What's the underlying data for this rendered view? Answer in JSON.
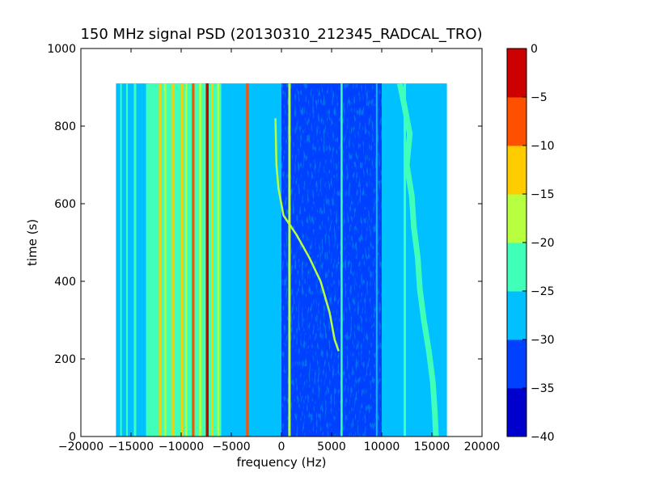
{
  "chart_data": {
    "type": "heatmap",
    "title": "150 MHz signal PSD (20130310_212345_RADCAL_TRO)",
    "xlabel": "frequency (Hz)",
    "ylabel": "time (s)",
    "xlim": [
      -20000,
      20000
    ],
    "ylim": [
      0,
      1000
    ],
    "x_ticks": [
      -20000,
      -15000,
      -10000,
      -5000,
      0,
      5000,
      10000,
      15000,
      20000
    ],
    "x_tick_labels": [
      "−20000",
      "−15000",
      "−10000",
      "−5000",
      "0",
      "5000",
      "10000",
      "15000",
      "20000"
    ],
    "y_ticks": [
      0,
      200,
      400,
      600,
      800,
      1000
    ],
    "y_tick_labels": [
      "0",
      "200",
      "400",
      "600",
      "800",
      "1000"
    ],
    "data_extent": {
      "x": [
        -16500,
        16500
      ],
      "y": [
        0,
        910
      ]
    },
    "colorbar": {
      "range": [
        -40,
        0
      ],
      "levels": [
        -40,
        -35,
        -30,
        -25,
        -20,
        -15,
        -10,
        -5,
        0
      ],
      "tick_labels": [
        "−40",
        "−35",
        "−30",
        "−25",
        "−20",
        "−15",
        "−10",
        "−5",
        "0"
      ],
      "colors": [
        "#0000cd",
        "#0040ff",
        "#00c0ff",
        "#40ffb8",
        "#b8ff40",
        "#ffcc00",
        "#ff5000",
        "#cd0000"
      ]
    },
    "background_level": -27,
    "bands": [
      {
        "x0": -16500,
        "x1": 16500,
        "level": -27
      },
      {
        "x0": 0,
        "x1": 10000,
        "level": -32
      },
      {
        "x0": -9000,
        "x1": -6000,
        "level": -22
      },
      {
        "x0": -13500,
        "x1": -8000,
        "level": -24
      }
    ],
    "tones": [
      {
        "x": -16000,
        "level": -22,
        "width": 160
      },
      {
        "x": -15400,
        "level": -24,
        "width": 160
      },
      {
        "x": -14600,
        "level": -22,
        "width": 240
      },
      {
        "x": -12100,
        "level": -12,
        "width": 240
      },
      {
        "x": -11600,
        "level": -20,
        "width": 220
      },
      {
        "x": -10800,
        "level": -15,
        "width": 260
      },
      {
        "x": -9900,
        "level": -14,
        "width": 220
      },
      {
        "x": -9500,
        "level": -20,
        "width": 200
      },
      {
        "x": -8800,
        "level": -6,
        "width": 260
      },
      {
        "x": -8100,
        "level": -17,
        "width": 220
      },
      {
        "x": -7400,
        "level": -2,
        "width": 280
      },
      {
        "x": -6900,
        "level": -12,
        "width": 240
      },
      {
        "x": -6300,
        "level": -20,
        "width": 200
      },
      {
        "x": -3400,
        "level": -8,
        "width": 250
      },
      {
        "x": 800,
        "level": -20,
        "width": 240
      },
      {
        "x": 6000,
        "level": -24,
        "width": 200
      },
      {
        "x": 9500,
        "level": -26,
        "width": 160
      },
      {
        "x": 12300,
        "level": -24,
        "width": 240
      }
    ],
    "drifting_signals": [
      {
        "name": "drift",
        "level": -18,
        "points": [
          [
            -600,
            820
          ],
          [
            -500,
            700
          ],
          [
            -300,
            640
          ],
          [
            200,
            570
          ],
          [
            1500,
            520
          ],
          [
            2800,
            460
          ],
          [
            3900,
            400
          ],
          [
            4800,
            320
          ],
          [
            5300,
            250
          ],
          [
            5700,
            220
          ]
        ]
      },
      {
        "name": "wander",
        "level": -22,
        "points": [
          [
            11800,
            910
          ],
          [
            12200,
            860
          ],
          [
            12800,
            780
          ],
          [
            12500,
            700
          ],
          [
            13000,
            620
          ],
          [
            13200,
            540
          ],
          [
            13600,
            460
          ],
          [
            13800,
            380
          ],
          [
            14200,
            300
          ],
          [
            14700,
            220
          ],
          [
            15100,
            140
          ],
          [
            15300,
            60
          ],
          [
            15400,
            0
          ]
        ]
      }
    ]
  }
}
